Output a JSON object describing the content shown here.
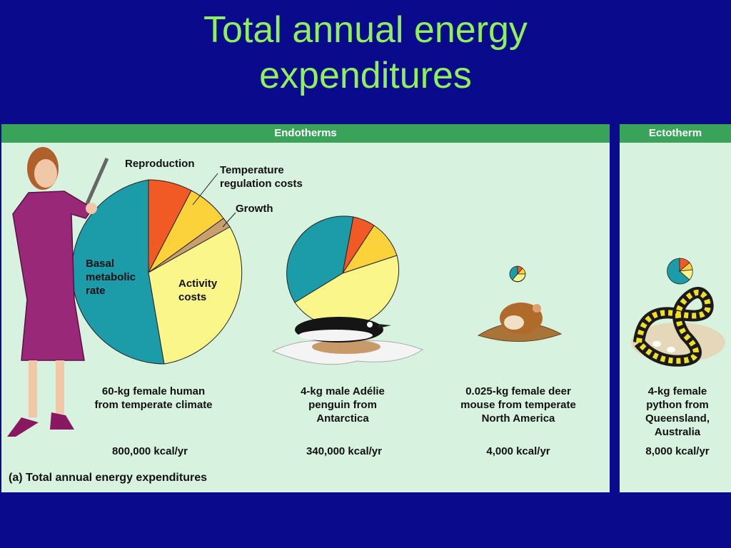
{
  "title_line1": "Total annual energy",
  "title_line2": "expenditures",
  "headers": {
    "endotherms": "Endotherms",
    "ectotherm": "Ectotherm"
  },
  "pie_labels": {
    "reproduction": "Reproduction",
    "temperature": "Temperature\nregulation costs",
    "growth": "Growth",
    "basal": "Basal\nmetabolic\nrate",
    "activity": "Activity\ncosts"
  },
  "organisms": [
    {
      "label": "60-kg female human\nfrom temperate climate",
      "energy": "800,000 kcal/yr"
    },
    {
      "label": "4-kg male Adélie\npenguin from\nAntarctica",
      "energy": "340,000 kcal/yr"
    },
    {
      "label": "0.025-kg female deer\nmouse from temperate\nNorth America",
      "energy": "4,000 kcal/yr"
    },
    {
      "label": "4-kg female\npython from\nQueensland,\nAustralia",
      "energy": "8,000 kcal/yr"
    }
  ],
  "caption_tag": "(a)",
  "caption": "Total annual energy expenditures",
  "colors": {
    "basal": "#1c9ba8",
    "reproduction": "#f25a25",
    "temperature": "#fcd23a",
    "growth": "#c8a070",
    "activity": "#fbf68a",
    "title": "#8ef05a",
    "background": "#0a0a8c",
    "panel": "#d8f2e0",
    "header": "#3aa35a"
  }
}
